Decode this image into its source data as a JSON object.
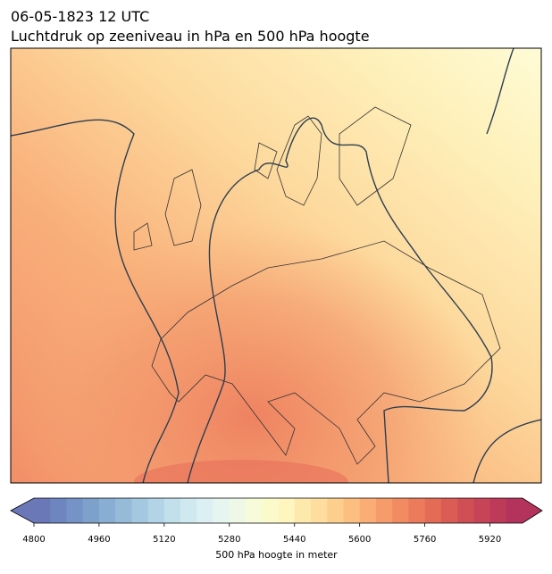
{
  "header": {
    "date_line": "06-05-1823 12 UTC",
    "title": "Luchtdruk op zeeniveau in hPa en 500 hPa hoogte"
  },
  "colorbar": {
    "label": "500 hPa hoogte in meter",
    "range": [
      4800,
      6000
    ],
    "ticks": [
      4800,
      4960,
      5120,
      5280,
      5440,
      5600,
      5760,
      5920
    ],
    "colors": [
      "#6b78b8",
      "#6d86bf",
      "#7593c6",
      "#7ea1cc",
      "#88aed3",
      "#95bbd9",
      "#a3c8df",
      "#b2d4e6",
      "#c1e0ec",
      "#d0e9f1",
      "#dcf0f3",
      "#e6f5f0",
      "#eff8e6",
      "#f7fbd9",
      "#fbfacb",
      "#fef5bf",
      "#fee9ad",
      "#fedd9e",
      "#fdcf8f",
      "#fcbf80",
      "#faad74",
      "#f69c6a",
      "#f28b61",
      "#ec7b5b",
      "#e46b56",
      "#da5c54",
      "#d04f55",
      "#c74457",
      "#bd3a59",
      "#b3335c"
    ]
  }
}
